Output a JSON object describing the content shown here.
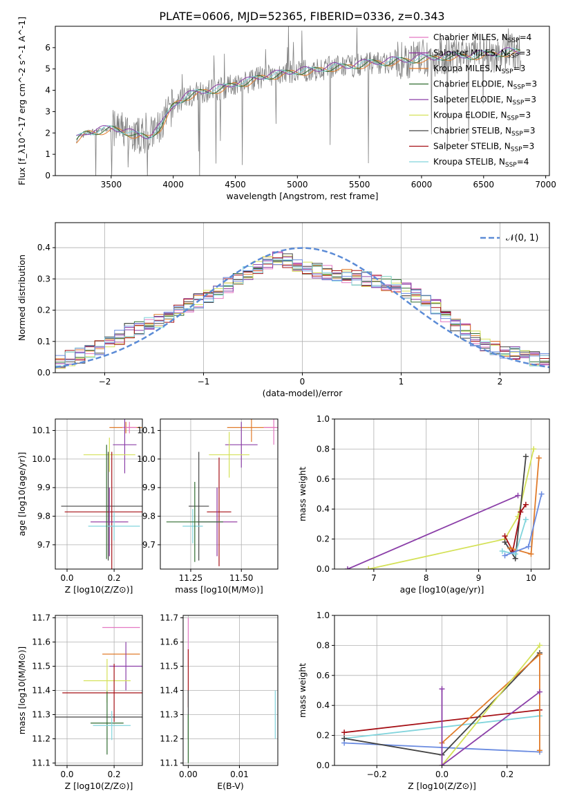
{
  "figure_title": "PLATE=0606, MJD=52365, FIBERID=0336, z=0.343",
  "colors": {
    "data": "#808080",
    "Chabrier MILES": "#e377c2",
    "Salpeter MILES": "#8c2d9c",
    "Kroupa MILES": "#e07b2a",
    "Chabrier ELODIE": "#2f6b2f",
    "Salpeter ELODIE": "#8b3fa8",
    "Kroupa ELODIE": "#d4e157",
    "Chabrier STELIB": "#444444",
    "Salpeter STELIB": "#a50f15",
    "Kroupa STELIB": "#80d4dc",
    "gaussian": "#5b8bd6",
    "extra_blue": "#6a8be0"
  },
  "chart_data": [
    {
      "id": "spectrum",
      "type": "line",
      "xlabel": "wavelength [Angstrom, rest frame]",
      "ylabel": "Flux [f_λ10^-17 erg cm^-2 s^-1 A^-1]",
      "xlim": [
        3050,
        7030
      ],
      "ylim": [
        0,
        7
      ],
      "xticks": [
        3500,
        4000,
        4500,
        5000,
        5500,
        6000,
        6500,
        7000
      ],
      "yticks": [
        0,
        1,
        2,
        3,
        4,
        5,
        6
      ],
      "grid": false,
      "legend_position": "right",
      "legend": [
        {
          "name": "Chabrier MILES",
          "n": "4"
        },
        {
          "name": "Salpeter MILES",
          "n": "3"
        },
        {
          "name": "Kroupa MILES",
          "n": "3"
        },
        {
          "name": "Chabrier ELODIE",
          "n": "3"
        },
        {
          "name": "Salpeter ELODIE",
          "n": "3"
        },
        {
          "name": "Kroupa ELODIE",
          "n": "3"
        },
        {
          "name": "Chabrier STELIB",
          "n": "3"
        },
        {
          "name": "Salpeter STELIB",
          "n": "3"
        },
        {
          "name": "Kroupa STELIB",
          "n": "4"
        }
      ],
      "continuum": {
        "x": [
          3220,
          3300,
          3400,
          3500,
          3600,
          3700,
          3800,
          3900,
          4000,
          4100,
          4200,
          4300,
          4400,
          4500,
          4600,
          4700,
          4800,
          4900,
          5000,
          5100,
          5200,
          5300,
          5400,
          5500,
          5600,
          5700,
          5800,
          5900,
          6000,
          6100,
          6200,
          6300,
          6400,
          6500,
          6600,
          6700,
          6800
        ],
        "y": [
          1.7,
          2.0,
          2.1,
          2.2,
          2.1,
          1.9,
          1.8,
          2.3,
          3.3,
          3.7,
          3.9,
          4.0,
          4.1,
          4.3,
          4.4,
          4.6,
          4.7,
          4.8,
          4.9,
          4.9,
          5.0,
          5.1,
          5.1,
          5.2,
          5.3,
          5.3,
          5.4,
          5.4,
          5.5,
          5.5,
          5.6,
          5.6,
          5.6,
          5.7,
          5.7,
          5.8,
          5.8
        ]
      }
    },
    {
      "id": "residuals",
      "type": "line",
      "xlabel": "(data-model)/error",
      "ylabel": "Normed distribution",
      "xlim": [
        -2.5,
        2.5
      ],
      "ylim": [
        0,
        0.48
      ],
      "xticks": [
        -2,
        -1,
        0,
        1,
        2
      ],
      "yticks": [
        0.0,
        0.1,
        0.2,
        0.3,
        0.4
      ],
      "grid": true,
      "legend_position": "top-right",
      "legend": [
        "𝒩(0, 1)"
      ],
      "histogram_mean": {
        "x": [
          -2.5,
          -2.25,
          -2.0,
          -1.75,
          -1.5,
          -1.25,
          -1.0,
          -0.75,
          -0.5,
          -0.25,
          0.0,
          0.25,
          0.5,
          0.75,
          1.0,
          1.25,
          1.5,
          1.75,
          2.0,
          2.25,
          2.5
        ],
        "y": [
          0.035,
          0.055,
          0.085,
          0.135,
          0.16,
          0.2,
          0.235,
          0.28,
          0.33,
          0.37,
          0.34,
          0.32,
          0.305,
          0.295,
          0.27,
          0.235,
          0.17,
          0.11,
          0.07,
          0.05,
          0.035
        ]
      }
    },
    {
      "id": "age_vs_Z",
      "type": "scatter",
      "xlabel": "Z [log10(Z/Z⊙)]",
      "ylabel": "age [log10(age/yr)]",
      "xlim": [
        -0.05,
        0.32
      ],
      "ylim": [
        9.615,
        10.14
      ],
      "xticks": [
        0.0,
        0.2
      ],
      "yticks": [
        9.7,
        9.8,
        9.9,
        10.0,
        10.1
      ],
      "grid": true,
      "points": [
        {
          "model": "Kroupa MILES",
          "x": 0.25,
          "y": 10.11,
          "xerr": 0.07,
          "yerr": 0.02
        },
        {
          "model": "Chabrier MILES",
          "x": 0.265,
          "y": 10.11,
          "xerr": 0.03,
          "yerr": 0.02
        },
        {
          "model": "Salpeter ELODIE",
          "x": 0.245,
          "y": 10.05,
          "xerr": 0.05,
          "yerr": 0.1
        },
        {
          "model": "Kroupa ELODIE",
          "x": 0.18,
          "y": 10.015,
          "xerr": 0.11,
          "yerr": 0.06
        },
        {
          "model": "Chabrier STELIB",
          "x": 0.175,
          "y": 9.835,
          "xerr": 0.2,
          "yerr": 0.19
        },
        {
          "model": "Salpeter STELIB",
          "x": 0.19,
          "y": 9.815,
          "xerr": 0.2,
          "yerr": 0.21
        },
        {
          "model": "Salpeter MILES",
          "x": 0.18,
          "y": 9.78,
          "xerr": 0.08,
          "yerr": 0.12
        },
        {
          "model": "Kroupa STELIB",
          "x": 0.2,
          "y": 9.765,
          "xerr": 0.11,
          "yerr": 0.05
        },
        {
          "model": "Chabrier ELODIE",
          "x": 0.168,
          "y": 9.85,
          "xerr": 0.0,
          "yerr": 0.2
        }
      ]
    },
    {
      "id": "age_vs_mass",
      "type": "scatter",
      "xlabel": "mass [log10(M/M⊙)]",
      "ylabel": "",
      "xlim": [
        11.1,
        11.68
      ],
      "ylim": [
        9.615,
        10.14
      ],
      "xticks": [
        11.25,
        11.5
      ],
      "yticks": [
        9.7,
        9.8,
        9.9,
        10.0,
        10.1
      ],
      "grid": true,
      "points": [
        {
          "model": "Kroupa MILES",
          "x": 11.55,
          "y": 10.11,
          "xerr": 0.12,
          "yerr": 0.05
        },
        {
          "model": "Chabrier MILES",
          "x": 11.66,
          "y": 10.11,
          "xerr": 0.05,
          "yerr": 0.06
        },
        {
          "model": "Salpeter ELODIE",
          "x": 11.5,
          "y": 10.05,
          "xerr": 0.08,
          "yerr": 0.08
        },
        {
          "model": "Kroupa ELODIE",
          "x": 11.44,
          "y": 10.015,
          "xerr": 0.1,
          "yerr": 0.08
        },
        {
          "model": "Chabrier STELIB",
          "x": 11.29,
          "y": 9.835,
          "xerr": 0.05,
          "yerr": 0.19
        },
        {
          "model": "Salpeter STELIB",
          "x": 11.39,
          "y": 9.815,
          "xerr": 0.06,
          "yerr": 0.19
        },
        {
          "model": "Salpeter MILES",
          "x": 11.38,
          "y": 9.78,
          "xerr": 0.1,
          "yerr": 0.12
        },
        {
          "model": "Kroupa STELIB",
          "x": 11.26,
          "y": 9.765,
          "xerr": 0.05,
          "yerr": 0.06
        },
        {
          "model": "Chabrier ELODIE",
          "x": 11.27,
          "y": 9.78,
          "xerr": 0.14,
          "yerr": 0.14
        }
      ]
    },
    {
      "id": "massweight_vs_age",
      "type": "line",
      "xlabel": "age [log10(age/yr)]",
      "ylabel": "mass weight",
      "xlim": [
        6.25,
        10.35
      ],
      "ylim": [
        0,
        1
      ],
      "xticks": [
        7,
        8,
        9,
        10
      ],
      "yticks": [
        0.0,
        0.2,
        0.4,
        0.6,
        0.8,
        1.0
      ],
      "grid": true,
      "series": [
        {
          "model": "Salpeter ELODIE",
          "x": [
            6.5,
            9.75
          ],
          "y": [
            0.0,
            0.49
          ]
        },
        {
          "model": "Kroupa ELODIE",
          "x": [
            6.9,
            9.5,
            9.75,
            10.05
          ],
          "y": [
            0.0,
            0.2,
            0.35,
            0.8
          ]
        },
        {
          "model": "Chabrier STELIB",
          "x": [
            9.5,
            9.7,
            9.9
          ],
          "y": [
            0.18,
            0.07,
            0.75
          ]
        },
        {
          "model": "Salpeter STELIB",
          "x": [
            9.5,
            9.65,
            9.8,
            9.9
          ],
          "y": [
            0.22,
            0.12,
            0.38,
            0.43
          ]
        },
        {
          "model": "Kroupa MILES",
          "x": [
            9.6,
            10.0,
            10.15
          ],
          "y": [
            0.14,
            0.1,
            0.74
          ]
        },
        {
          "model": "Kroupa STELIB",
          "x": [
            9.45,
            9.7,
            9.9
          ],
          "y": [
            0.12,
            0.1,
            0.33
          ]
        },
        {
          "model": "extra_blue",
          "x": [
            9.5,
            9.95,
            10.2
          ],
          "y": [
            0.09,
            0.15,
            0.5
          ]
        }
      ]
    },
    {
      "id": "mass_vs_Z",
      "type": "scatter",
      "xlabel": "Z [log10(Z/Z⊙)]",
      "ylabel": "mass [log10(M/M⊙)]",
      "xlim": [
        -0.05,
        0.32
      ],
      "ylim": [
        11.09,
        11.71
      ],
      "xticks": [
        0.0,
        0.2
      ],
      "yticks": [
        11.1,
        11.2,
        11.3,
        11.4,
        11.5,
        11.6,
        11.7
      ],
      "grid": true,
      "points": [
        {
          "model": "Chabrier MILES",
          "x": 0.23,
          "y": 11.66,
          "xerr": 0.08,
          "yerr": 0.0
        },
        {
          "model": "Kroupa MILES",
          "x": 0.23,
          "y": 11.55,
          "xerr": 0.08,
          "yerr": 0.0
        },
        {
          "model": "Salpeter ELODIE",
          "x": 0.25,
          "y": 11.5,
          "xerr": 0.07,
          "yerr": 0.1
        },
        {
          "model": "Kroupa ELODIE",
          "x": 0.17,
          "y": 11.44,
          "xerr": 0.1,
          "yerr": 0.09
        },
        {
          "model": "Salpeter STELIB",
          "x": 0.2,
          "y": 11.39,
          "xerr": 0.22,
          "yerr": 0.12
        },
        {
          "model": "Chabrier STELIB",
          "x": 0.17,
          "y": 11.29,
          "xerr": 0.22,
          "yerr": 0.0
        },
        {
          "model": "Chabrier ELODIE",
          "x": 0.17,
          "y": 11.265,
          "xerr": 0.07,
          "yerr": 0.13
        },
        {
          "model": "Kroupa STELIB",
          "x": 0.19,
          "y": 11.255,
          "xerr": 0.08,
          "yerr": 0.06
        }
      ]
    },
    {
      "id": "mass_vs_EBV",
      "type": "scatter",
      "xlabel": "E(B-V)",
      "ylabel": "",
      "xlim": [
        -0.001,
        0.0175
      ],
      "ylim": [
        11.09,
        11.71
      ],
      "xticks": [
        0.0,
        0.01
      ],
      "yticks": [
        11.1,
        11.2,
        11.3,
        11.4,
        11.5,
        11.6,
        11.7
      ],
      "grid": true,
      "points": [
        {
          "model": "Chabrier MILES",
          "x": 0.0,
          "y": 11.6,
          "xerr": 0.0,
          "yerr": 0.1
        },
        {
          "model": "Salpeter STELIB",
          "x": 0.0,
          "y": 11.45,
          "xerr": 0.0,
          "yerr": 0.12
        },
        {
          "model": "Chabrier STELIB",
          "x": 0.0,
          "y": 11.3,
          "xerr": 0.0,
          "yerr": 0.1
        },
        {
          "model": "Chabrier ELODIE",
          "x": 0.0,
          "y": 11.2,
          "xerr": 0.0,
          "yerr": 0.1
        },
        {
          "model": "Kroupa STELIB",
          "x": 0.017,
          "y": 11.3,
          "xerr": 0.0,
          "yerr": 0.1
        }
      ]
    },
    {
      "id": "massweight_vs_Z",
      "type": "line",
      "xlabel": "Z [log10(Z/Z⊙)]",
      "ylabel": "mass weight",
      "xlim": [
        -0.33,
        0.33
      ],
      "ylim": [
        0,
        1
      ],
      "xticks": [
        -0.2,
        0.0,
        0.2
      ],
      "yticks": [
        0.0,
        0.2,
        0.4,
        0.6,
        0.8,
        1.0
      ],
      "grid": true,
      "series": [
        {
          "model": "Salpeter STELIB",
          "x": [
            -0.3,
            0.3
          ],
          "y": [
            0.22,
            0.37
          ]
        },
        {
          "model": "Kroupa STELIB",
          "x": [
            -0.3,
            0.3
          ],
          "y": [
            0.18,
            0.33
          ]
        },
        {
          "model": "extra_blue",
          "x": [
            -0.3,
            0.3
          ],
          "y": [
            0.15,
            0.09
          ]
        },
        {
          "model": "Chabrier STELIB",
          "x": [
            -0.3,
            0.0,
            0.3
          ],
          "y": [
            0.18,
            0.07,
            0.75
          ]
        },
        {
          "model": "Kroupa MILES",
          "x": [
            0.0,
            0.3,
            0.3
          ],
          "y": [
            0.15,
            0.74,
            0.1
          ]
        },
        {
          "model": "Kroupa ELODIE",
          "x": [
            0.0,
            0.3
          ],
          "y": [
            0.0,
            0.8
          ]
        },
        {
          "model": "Salpeter ELODIE",
          "x": [
            0.0,
            0.0,
            0.3
          ],
          "y": [
            0.51,
            0.0,
            0.49
          ]
        }
      ]
    }
  ]
}
